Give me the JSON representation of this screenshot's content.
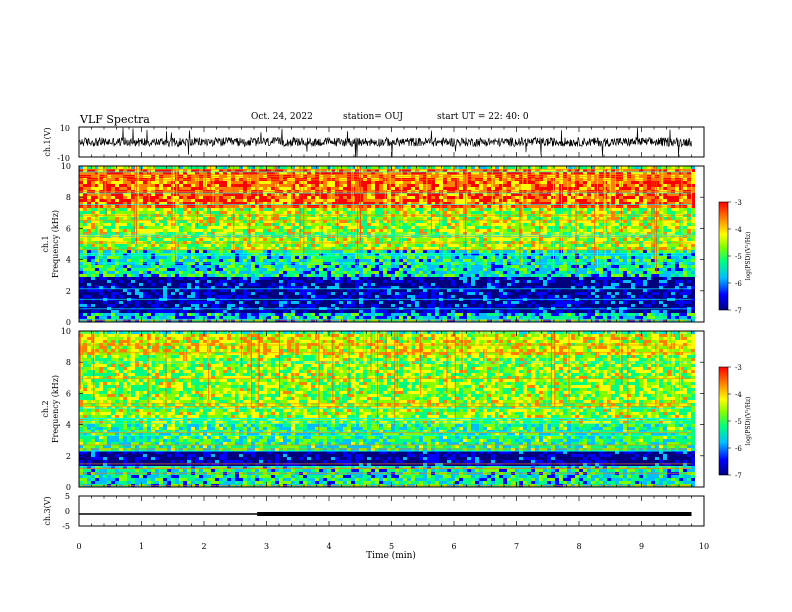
{
  "header": {
    "title": "VLF Spectra",
    "date": "Oct. 24, 2022",
    "station": "station= OUJ",
    "start": "start  UT  =   22: 40: 0"
  },
  "chart_data": [
    {
      "type": "line",
      "panel": "ch1-waveform",
      "ylabel": "ch.1(V)",
      "ylim": [
        -10,
        10
      ],
      "yticks": [
        "10",
        "-10"
      ],
      "xlim": [
        0,
        10
      ],
      "baseline": 0,
      "note_values_visible": "noisy waveform around zero with spikes"
    },
    {
      "type": "heatmap",
      "panel": "ch1-spectrogram",
      "ylabel_line1": "ch.1",
      "ylabel_line2": "Frequency  (kHz)",
      "ylim": [
        0,
        10
      ],
      "yticks": [
        "0",
        "2",
        "4",
        "6",
        "8",
        "10"
      ],
      "xlim": [
        0,
        10
      ],
      "data_end_min": 9.8,
      "colorbar": {
        "label": "log(PSD)(V²/Hz)",
        "range": [
          -7,
          -3
        ],
        "ticks": [
          "-3",
          "-4",
          "-5",
          "-6",
          "-7"
        ]
      },
      "colormap": [
        "#00007f",
        "#0000ff",
        "#00bfff",
        "#00ff80",
        "#80ff00",
        "#ffff00",
        "#ff8000",
        "#ff0000"
      ],
      "bands_khz": [
        {
          "from": 0,
          "to": 0.6,
          "level": -5.6
        },
        {
          "from": 0.6,
          "to": 3,
          "level": -6.6
        },
        {
          "from": 3,
          "to": 4.8,
          "level": -5.4
        },
        {
          "from": 4.8,
          "to": 7.5,
          "level": -4.6
        },
        {
          "from": 7.5,
          "to": 10,
          "level": -3.6
        }
      ]
    },
    {
      "type": "heatmap",
      "panel": "ch2-spectrogram",
      "ylabel_line1": "ch.2",
      "ylabel_line2": "Frequency  (kHz)",
      "ylim": [
        0,
        10
      ],
      "yticks": [
        "0",
        "2",
        "4",
        "6",
        "8",
        "10"
      ],
      "xlim": [
        0,
        10
      ],
      "data_end_min": 9.8,
      "colorbar": {
        "label": "log(PSD)(V²/Hz)",
        "range": [
          -7,
          -3
        ],
        "ticks": [
          "-3",
          "-4",
          "-5",
          "-6",
          "-7"
        ]
      },
      "colormap": [
        "#00007f",
        "#0000ff",
        "#00bfff",
        "#00ff80",
        "#80ff00",
        "#ffff00",
        "#ff8000",
        "#ff0000"
      ],
      "bands_khz": [
        {
          "from": 0,
          "to": 1.4,
          "level": -5.4
        },
        {
          "from": 1.4,
          "to": 2.4,
          "level": -6.7
        },
        {
          "from": 2.4,
          "to": 4.2,
          "level": -5.2
        },
        {
          "from": 4.2,
          "to": 8.5,
          "level": -4.7
        },
        {
          "from": 8.5,
          "to": 10,
          "level": -4.3
        }
      ]
    },
    {
      "type": "line",
      "panel": "ch3-trace",
      "ylabel": "ch.3(V)",
      "ylim": [
        -5,
        5
      ],
      "yticks": [
        "5",
        "0",
        "-5"
      ],
      "xlim": [
        0,
        10
      ],
      "xlabel": "Time  (min)",
      "xticks": [
        "0",
        "1",
        "2",
        "3",
        "4",
        "5",
        "6",
        "7",
        "8",
        "9",
        "10"
      ],
      "segments": [
        {
          "x": [
            0,
            2.85
          ],
          "y": -1.0,
          "thick": false
        },
        {
          "x": [
            2.85,
            9.8
          ],
          "y": -1.0,
          "thick": true
        }
      ]
    }
  ]
}
